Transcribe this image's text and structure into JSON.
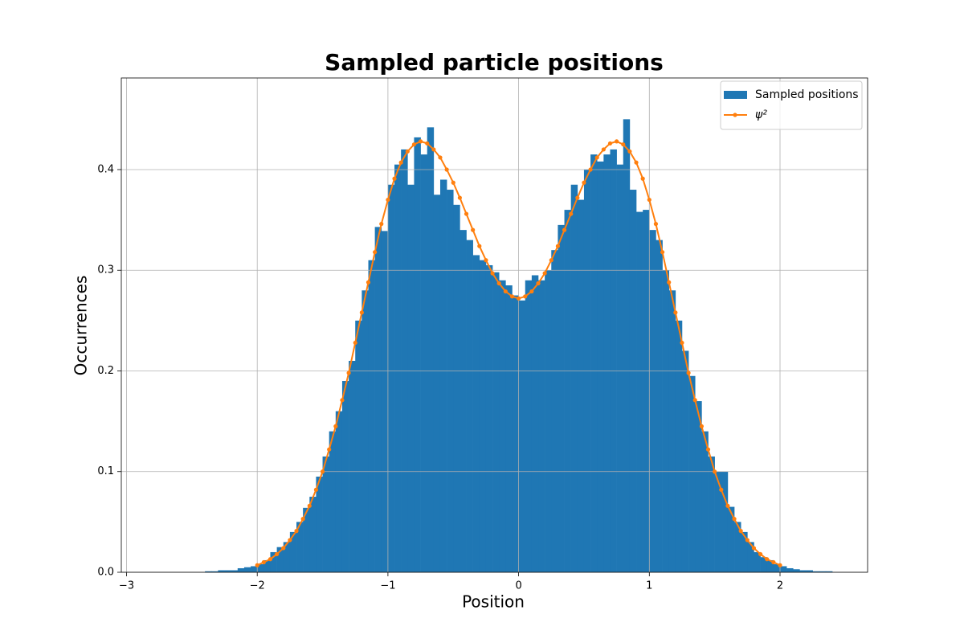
{
  "chart_data": {
    "type": "histogram",
    "title": "Sampled particle positions",
    "x_label": "Position",
    "y_label": "Occurrences",
    "xlim": [
      -3.04,
      2.67
    ],
    "ylim": [
      0,
      0.491
    ],
    "xticks": [
      {
        "value": -3,
        "label": "−3"
      },
      {
        "value": -2,
        "label": "−2"
      },
      {
        "value": -1,
        "label": "−1"
      },
      0,
      1,
      2
    ],
    "yticks": [
      {
        "value": 0,
        "label": "0.0"
      },
      0.1,
      0.2,
      0.3,
      0.4
    ],
    "grid": true,
    "legend": "upper right",
    "series": [
      {
        "type": "histogram",
        "name": "Sampled positions",
        "color": "#1f77b4",
        "bins": [
          -2.5,
          -2.45,
          -2.4,
          -2.35,
          -2.3,
          -2.25,
          -2.2,
          -2.15,
          -2.1,
          -2.05,
          -2.0,
          -1.95,
          -1.9,
          -1.85,
          -1.8,
          -1.75,
          -1.7,
          -1.65,
          -1.6,
          -1.55,
          -1.5,
          -1.45,
          -1.4,
          -1.35,
          -1.3,
          -1.25,
          -1.2,
          -1.15,
          -1.1,
          -1.05,
          -1.0,
          -0.95,
          -0.9,
          -0.85,
          -0.8,
          -0.75,
          -0.7,
          -0.65,
          -0.6,
          -0.55,
          -0.5,
          -0.45,
          -0.4,
          -0.35,
          -0.3,
          -0.25,
          -0.2,
          -0.15,
          -0.1,
          -0.05,
          0,
          0.05,
          0.1,
          0.15,
          0.2,
          0.25,
          0.3,
          0.35,
          0.4,
          0.45,
          0.5,
          0.55,
          0.6,
          0.65,
          0.7,
          0.75,
          0.8,
          0.85,
          0.9,
          0.95,
          1.0,
          1.05,
          1.1,
          1.15,
          1.2,
          1.25,
          1.3,
          1.35,
          1.4,
          1.45,
          1.5,
          1.55,
          1.6,
          1.65,
          1.7,
          1.75,
          1.8,
          1.85,
          1.9,
          1.95,
          2.0,
          2.05,
          2.1,
          2.15,
          2.2,
          2.25,
          2.3,
          2.35,
          2.4,
          2.45,
          2.5
        ],
        "values": [
          0,
          0,
          0.001,
          0.001,
          0.002,
          0.002,
          0.002,
          0.004,
          0.005,
          0.006,
          0.008,
          0.012,
          0.02,
          0.025,
          0.03,
          0.04,
          0.05,
          0.064,
          0.075,
          0.095,
          0.115,
          0.14,
          0.16,
          0.19,
          0.21,
          0.25,
          0.28,
          0.31,
          0.343,
          0.339,
          0.385,
          0.405,
          0.42,
          0.385,
          0.432,
          0.415,
          0.442,
          0.375,
          0.39,
          0.38,
          0.365,
          0.34,
          0.33,
          0.315,
          0.31,
          0.305,
          0.298,
          0.29,
          0.285,
          0.275,
          0.27,
          0.29,
          0.295,
          0.29,
          0.3,
          0.32,
          0.345,
          0.36,
          0.385,
          0.37,
          0.4,
          0.415,
          0.408,
          0.415,
          0.42,
          0.405,
          0.45,
          0.38,
          0.358,
          0.36,
          0.34,
          0.33,
          0.3,
          0.28,
          0.25,
          0.22,
          0.195,
          0.17,
          0.14,
          0.115,
          0.1,
          0.1,
          0.065,
          0.05,
          0.04,
          0.03,
          0.02,
          0.015,
          0.012,
          0.008,
          0.006,
          0.004,
          0.003,
          0.002,
          0.002,
          0.001,
          0.001,
          0.001,
          0,
          0
        ]
      },
      {
        "type": "line",
        "name": "ψ²",
        "color": "#ff7f0e",
        "x": [
          -2.0,
          -1.95,
          -1.9,
          -1.85,
          -1.8,
          -1.75,
          -1.7,
          -1.65,
          -1.6,
          -1.55,
          -1.5,
          -1.45,
          -1.4,
          -1.35,
          -1.3,
          -1.25,
          -1.2,
          -1.15,
          -1.1,
          -1.05,
          -1.0,
          -0.95,
          -0.9,
          -0.85,
          -0.8,
          -0.75,
          -0.7,
          -0.65,
          -0.6,
          -0.55,
          -0.5,
          -0.45,
          -0.4,
          -0.35,
          -0.3,
          -0.25,
          -0.2,
          -0.15,
          -0.1,
          -0.05,
          0,
          0.05,
          0.1,
          0.15,
          0.2,
          0.25,
          0.3,
          0.35,
          0.4,
          0.45,
          0.5,
          0.55,
          0.6,
          0.65,
          0.7,
          0.75,
          0.8,
          0.85,
          0.9,
          0.95,
          1.0,
          1.05,
          1.1,
          1.15,
          1.2,
          1.25,
          1.3,
          1.35,
          1.4,
          1.45,
          1.5,
          1.55,
          1.6,
          1.65,
          1.7,
          1.75,
          1.8,
          1.85,
          1.9,
          1.95,
          2.0
        ],
        "values": [
          0.007,
          0.01,
          0.013,
          0.018,
          0.024,
          0.032,
          0.041,
          0.053,
          0.066,
          0.082,
          0.1,
          0.122,
          0.145,
          0.171,
          0.198,
          0.228,
          0.258,
          0.288,
          0.318,
          0.346,
          0.37,
          0.391,
          0.407,
          0.418,
          0.425,
          0.428,
          0.426,
          0.42,
          0.412,
          0.4,
          0.387,
          0.372,
          0.356,
          0.34,
          0.324,
          0.31,
          0.297,
          0.287,
          0.279,
          0.274,
          0.272,
          0.274,
          0.279,
          0.287,
          0.297,
          0.31,
          0.324,
          0.34,
          0.356,
          0.372,
          0.387,
          0.4,
          0.412,
          0.42,
          0.426,
          0.428,
          0.425,
          0.418,
          0.407,
          0.391,
          0.37,
          0.346,
          0.318,
          0.288,
          0.258,
          0.228,
          0.198,
          0.171,
          0.145,
          0.122,
          0.1,
          0.082,
          0.066,
          0.053,
          0.041,
          0.032,
          0.024,
          0.018,
          0.013,
          0.01,
          0.007
        ]
      }
    ]
  }
}
